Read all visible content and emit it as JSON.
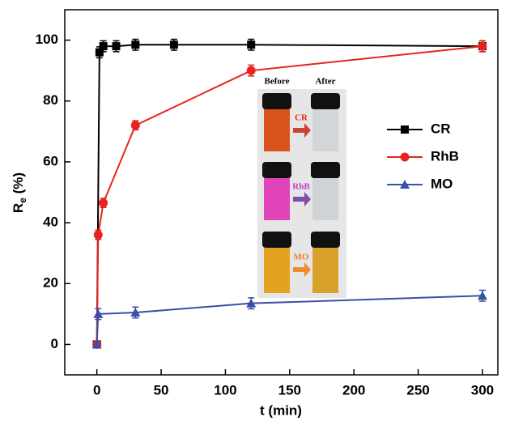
{
  "chart_data": {
    "type": "line",
    "xlabel": "t (min)",
    "ylabel": [
      "R",
      "e",
      " (%)"
    ],
    "xlim": [
      -25,
      312
    ],
    "xticks": [
      0,
      50,
      100,
      150,
      200,
      250,
      300
    ],
    "ylim": [
      -10,
      110
    ],
    "yticks": [
      0,
      20,
      40,
      60,
      80,
      100
    ],
    "legend": "right",
    "series": [
      {
        "name": "CR",
        "color": "#000000",
        "marker": "square",
        "x": [
          0,
          2,
          5,
          15,
          30,
          60,
          120,
          300
        ],
        "values": [
          0,
          96,
          98,
          98,
          98.5,
          98.5,
          98.5,
          98
        ],
        "errors": [
          0,
          1.8,
          1.8,
          1.8,
          1.8,
          1.8,
          1.8,
          1.8
        ]
      },
      {
        "name": "RhB",
        "color": "#e8231f",
        "marker": "circle",
        "x": [
          0,
          1,
          5,
          30,
          120,
          300
        ],
        "values": [
          0,
          36,
          46.5,
          72,
          90,
          98
        ],
        "errors": [
          0,
          1.5,
          1.5,
          1.5,
          1.8,
          1.8
        ]
      },
      {
        "name": "MO",
        "color": "#3a4fa8",
        "marker": "triangle",
        "x": [
          0,
          1,
          30,
          120,
          300
        ],
        "values": [
          0,
          10,
          10.5,
          13.5,
          16
        ],
        "errors": [
          0,
          1.8,
          1.8,
          1.8,
          1.8
        ]
      }
    ],
    "inset": {
      "before": "Before",
      "after": "After",
      "labels": [
        "CR",
        "RhB",
        "MO"
      ]
    }
  }
}
